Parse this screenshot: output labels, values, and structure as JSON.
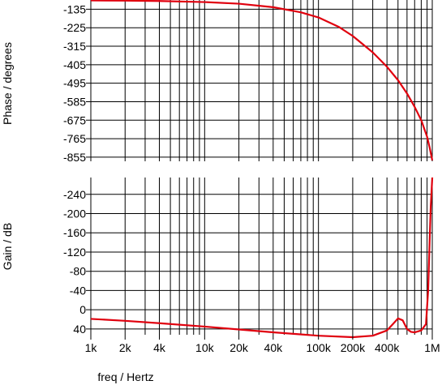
{
  "chart_data": [
    {
      "type": "line",
      "ylabel": "Phase / degrees",
      "yscale": "linear",
      "xscale": "log",
      "xlim": [
        1000,
        1000000
      ],
      "yticks": [
        -135,
        -225,
        -315,
        -405,
        -495,
        -585,
        -675,
        -765,
        -855
      ],
      "ytick_labels": [
        "-135",
        "-225",
        "-315",
        "-405",
        "-495",
        "-585",
        "-675",
        "-765",
        "-855"
      ],
      "ylim": [
        -90,
        -875
      ],
      "grid": true,
      "color": "#e0000e",
      "series": [
        {
          "x": [
            1000,
            2000,
            4000,
            10000,
            20000,
            40000,
            70000,
            100000,
            150000,
            200000,
            300000,
            400000,
            500000,
            600000,
            700000,
            800000,
            900000,
            950000,
            1000000
          ],
          "y": [
            -92,
            -93,
            -95,
            -100,
            -108,
            -125,
            -150,
            -175,
            -220,
            -265,
            -345,
            -415,
            -480,
            -545,
            -610,
            -675,
            -755,
            -810,
            -870
          ]
        }
      ]
    },
    {
      "type": "line",
      "ylabel": "Gain / dB",
      "xlabel": "freq / Hertz",
      "yscale": "linear",
      "xscale": "log",
      "xlim": [
        1000,
        1000000
      ],
      "xticks": [
        1000,
        2000,
        4000,
        10000,
        20000,
        40000,
        100000,
        200000,
        400000,
        1000000
      ],
      "xtick_labels": [
        "1k",
        "2k",
        "4k",
        "10k",
        "20k",
        "40k",
        "100k",
        "200k",
        "400k",
        "1M"
      ],
      "yticks": [
        40,
        0,
        -40,
        -80,
        -120,
        -160,
        -200,
        -240
      ],
      "ytick_labels": [
        "40",
        "0",
        "-40",
        "-80",
        "-120",
        "-160",
        "-200",
        "-240"
      ],
      "ylim": [
        -275,
        52
      ],
      "grid": true,
      "color": "#e0000e",
      "series": [
        {
          "x": [
            1000,
            2000,
            4000,
            10000,
            20000,
            40000,
            100000,
            200000,
            300000,
            400000,
            450000,
            500000,
            550000,
            600000,
            650000,
            700000,
            800000,
            880000,
            920000,
            950000,
            970000,
            1000000
          ],
          "y": [
            19,
            23,
            28,
            35,
            41,
            47,
            54,
            57,
            54,
            43,
            30,
            18,
            22,
            40,
            46,
            47,
            43,
            30,
            -40,
            -150,
            -215,
            -275
          ]
        }
      ]
    }
  ]
}
